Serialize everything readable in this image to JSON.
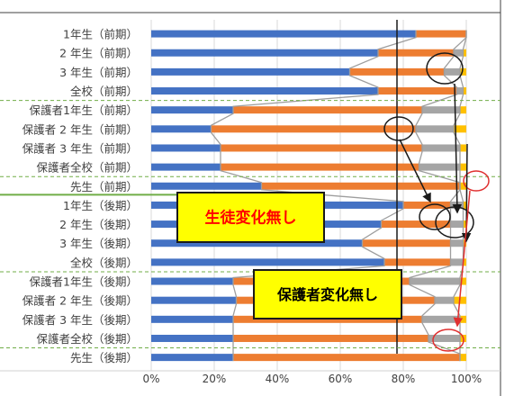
{
  "chart_data": {
    "type": "bar",
    "stacked": true,
    "orientation": "horizontal",
    "categories": [
      "1年生（前期）",
      "2 年生（前期）",
      "3 年生（前期）",
      "全校（前期）",
      "保護者1年生（前期）",
      "保護者 2 年生（前期）",
      "保護者 3 年生（前期）",
      "保護者全校（前期）",
      "先生（前期）",
      "1年生（後期）",
      "2 年生（後期）",
      "3 年生（後期）",
      "全校（後期）",
      "保護者1年生（後期）",
      "保護者 2 年生（後期）",
      "保護者 3 年生（後期）",
      "保護者全校（後期）",
      "先生（後期）"
    ],
    "series": [
      {
        "color": "#4472c4",
        "values": [
          84,
          72,
          63,
          72,
          26,
          19,
          22,
          22,
          35,
          80,
          73,
          67,
          74,
          26,
          27,
          26,
          26,
          26
        ]
      },
      {
        "color": "#ed7d31",
        "values": [
          16,
          24,
          30,
          25,
          60,
          65,
          64,
          63,
          63,
          15,
          22,
          28,
          21,
          56,
          63,
          60,
          62,
          72
        ]
      },
      {
        "color": "#a5a5a5",
        "values": [
          0,
          3,
          5,
          2,
          12,
          12,
          12,
          13,
          0,
          4,
          4,
          4,
          4,
          16,
          6,
          12,
          10,
          0
        ]
      },
      {
        "color": "#ffc000",
        "values": [
          0,
          1,
          2,
          1,
          2,
          4,
          2,
          2,
          2,
          1,
          1,
          1,
          1,
          2,
          4,
          2,
          2,
          2
        ]
      }
    ],
    "xlim": [
      0,
      100
    ],
    "xticks": [
      "0%",
      "20%",
      "40%",
      "60%",
      "80%",
      "100%"
    ],
    "reference_line": 78,
    "annotations": [
      {
        "text": "生徒変化無し",
        "color": "#ff0000",
        "background": "#ffff00"
      },
      {
        "text": "保護者変化無し",
        "color": "#000000",
        "background": "#ffff00"
      }
    ]
  }
}
